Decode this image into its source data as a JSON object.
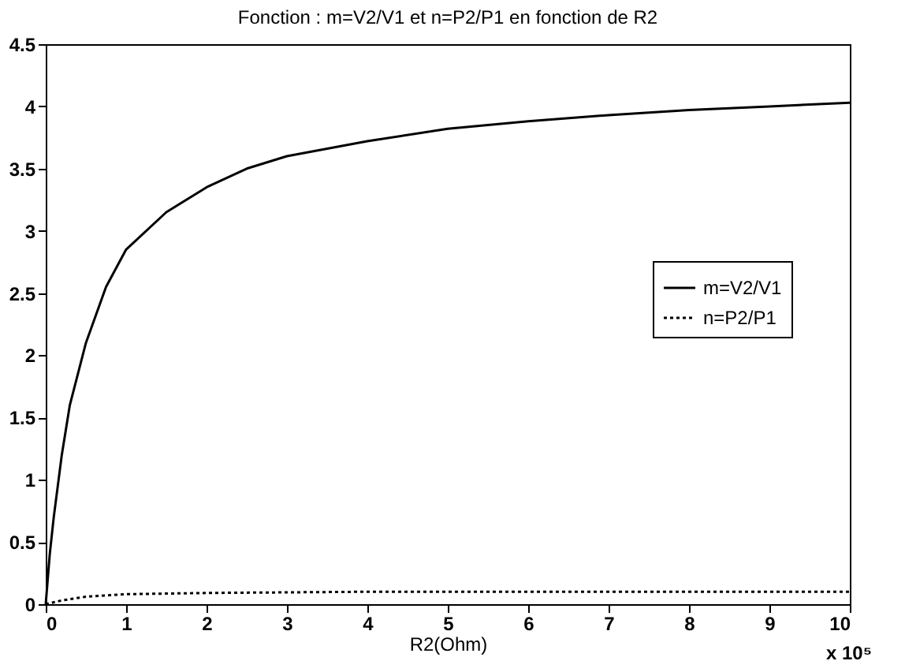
{
  "chart_data": {
    "type": "line",
    "title": "Fonction : m=V2/V1 et n=P2/P1 en fonction de R2",
    "xlabel": "R2(Ohm)",
    "annotations": [
      "x 10⁵"
    ],
    "xlim": [
      0,
      10
    ],
    "xticks": [
      0,
      1,
      2,
      3,
      4,
      5,
      6,
      7,
      8,
      9,
      10
    ],
    "ylim": [
      0,
      4.5
    ],
    "yticks": [
      0,
      0.5,
      1,
      1.5,
      2,
      2.5,
      3,
      3.5,
      4,
      4.5
    ],
    "grid": false,
    "legend": "right",
    "marker": "none",
    "series": [
      {
        "name": "m=V2/V1",
        "color": "#000000",
        "line_style": "solid",
        "x": [
          0,
          0.05,
          0.1,
          0.2,
          0.3,
          0.5,
          0.75,
          1,
          1.5,
          2,
          2.5,
          3,
          4,
          5,
          6,
          7,
          8,
          9,
          10
        ],
        "values": [
          0,
          0.4,
          0.7,
          1.2,
          1.6,
          2.1,
          2.55,
          2.85,
          3.15,
          3.35,
          3.5,
          3.6,
          3.72,
          3.82,
          3.88,
          3.93,
          3.97,
          4.0,
          4.03
        ]
      },
      {
        "name": "n=P2/P1",
        "color": "#000000",
        "line_style": "dotted",
        "x": [
          0,
          0.2,
          0.5,
          1,
          2,
          4,
          7,
          10
        ],
        "values": [
          0,
          0.03,
          0.06,
          0.08,
          0.09,
          0.1,
          0.1,
          0.1
        ]
      }
    ]
  }
}
